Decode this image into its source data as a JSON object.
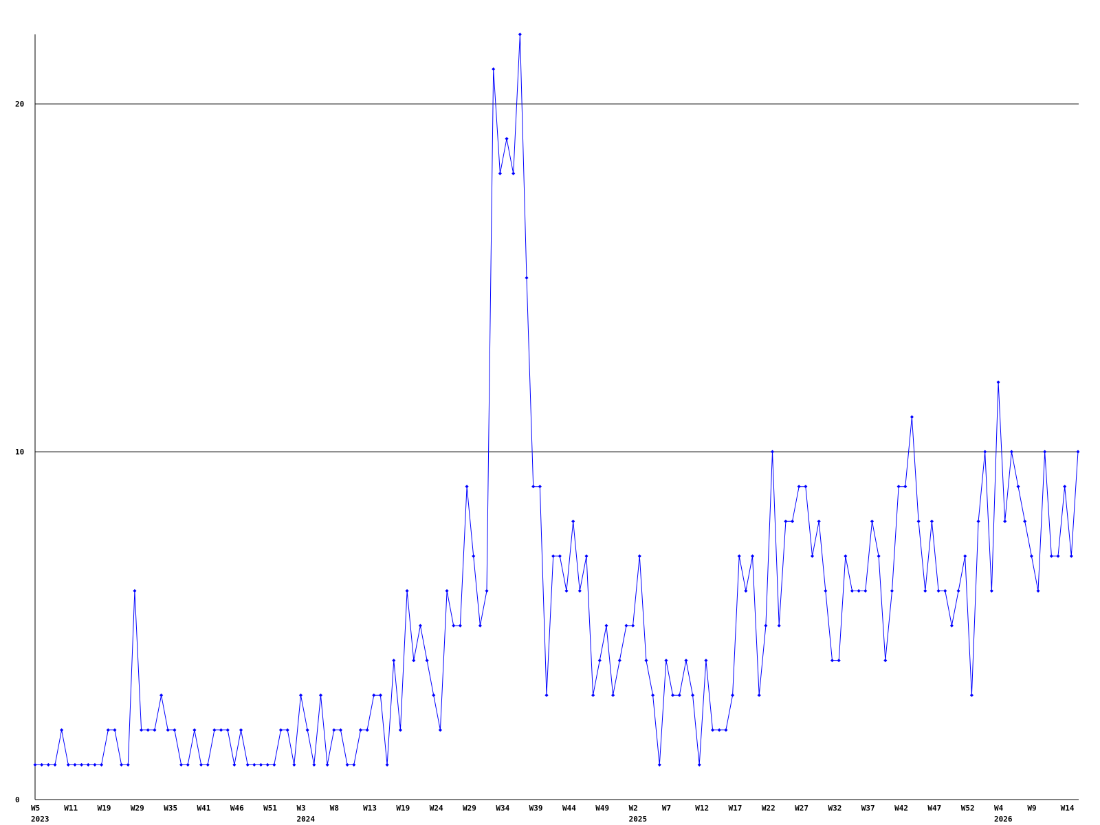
{
  "chart_data": {
    "type": "line",
    "title": "",
    "xlabel": "",
    "ylabel": "",
    "ylim": [
      0,
      22
    ],
    "y_ticks": [
      0,
      10,
      20
    ],
    "gridlines_y": [
      10,
      20
    ],
    "grid": true,
    "line_color": "#0000ff",
    "axis_color": "#000000",
    "values": [
      1,
      1,
      1,
      1,
      2,
      1,
      1,
      1,
      1,
      1,
      1,
      2,
      2,
      1,
      1,
      6,
      2,
      2,
      2,
      3,
      2,
      2,
      1,
      1,
      2,
      1,
      1,
      2,
      2,
      2,
      1,
      2,
      1,
      1,
      1,
      1,
      1,
      2,
      2,
      1,
      3,
      2,
      1,
      3,
      1,
      2,
      2,
      1,
      1,
      2,
      2,
      3,
      3,
      1,
      4,
      2,
      6,
      4,
      5,
      4,
      3,
      2,
      6,
      5,
      5,
      9,
      7,
      5,
      6,
      21,
      18,
      19,
      18,
      22,
      15,
      9,
      9,
      3,
      7,
      7,
      6,
      8,
      6,
      7,
      3,
      4,
      5,
      3,
      4,
      5,
      5,
      7,
      4,
      3,
      1,
      4,
      3,
      3,
      4,
      3,
      1,
      4,
      2,
      2,
      2,
      3,
      7,
      6,
      7,
      3,
      5,
      10,
      5,
      8,
      8,
      9,
      9,
      7,
      8,
      6,
      4,
      4,
      7,
      6,
      6,
      6,
      8,
      7,
      4,
      6,
      9,
      9,
      11,
      8,
      6,
      8,
      6,
      6,
      5,
      6,
      7,
      3,
      8,
      10,
      6,
      12,
      8,
      10,
      9,
      8,
      7,
      6,
      10,
      7,
      7,
      9,
      7,
      10
    ],
    "x_tick_every": 5,
    "x_tick_labels": [
      "W5",
      "W11",
      "W19",
      "W29",
      "W35",
      "W41",
      "W46",
      "W51",
      "W3",
      "W8",
      "W13",
      "W19",
      "W24",
      "W29",
      "W34",
      "W39",
      "W44",
      "W49",
      "W2",
      "W7",
      "W12",
      "W17",
      "W22",
      "W27",
      "W32",
      "W37",
      "W42",
      "W47",
      "W52",
      "W4",
      "W9",
      "W14"
    ],
    "year_labels": [
      {
        "label": "2023",
        "at_tick": 0
      },
      {
        "label": "2024",
        "at_tick": 8
      },
      {
        "label": "2025",
        "at_tick": 18
      },
      {
        "label": "2026",
        "at_tick": 29
      }
    ]
  }
}
